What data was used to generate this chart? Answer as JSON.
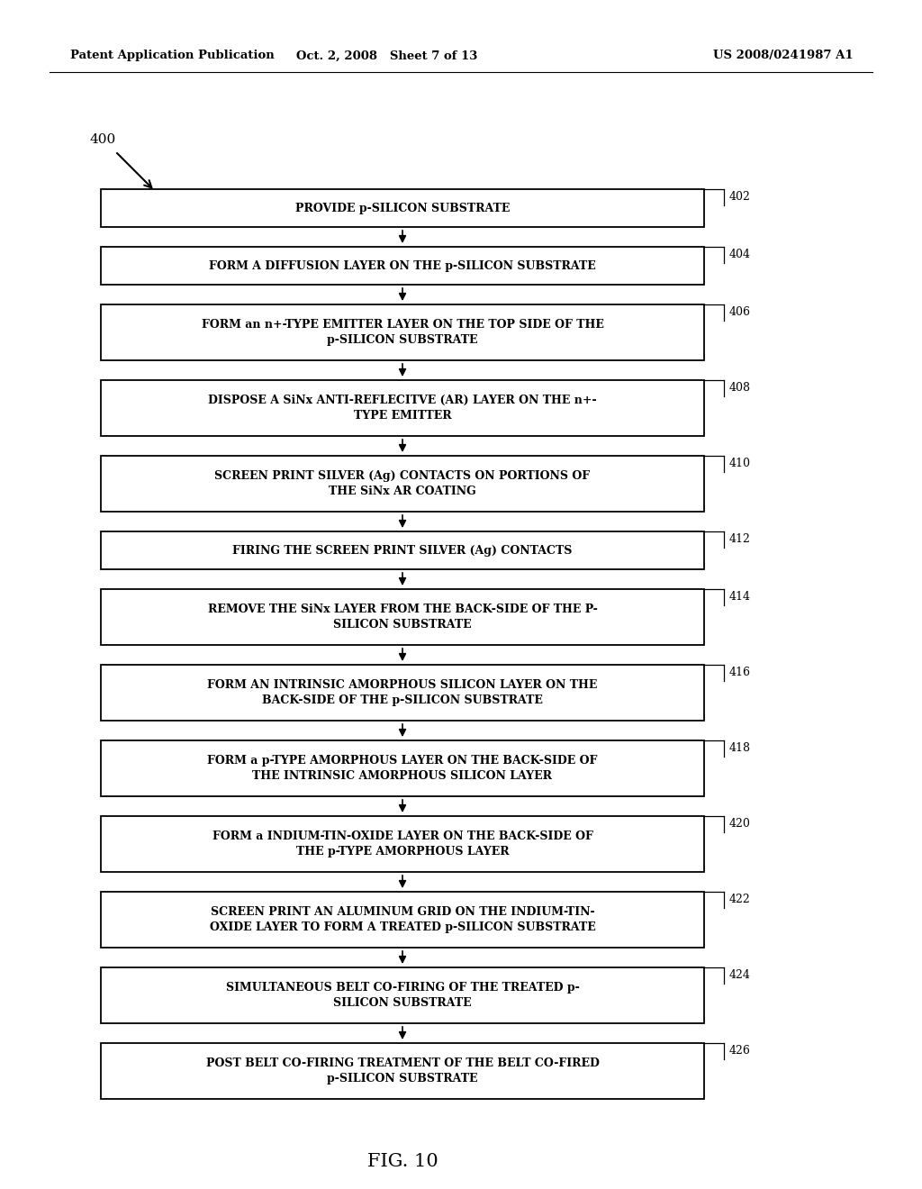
{
  "header_left": "Patent Application Publication",
  "header_mid": "Oct. 2, 2008   Sheet 7 of 13",
  "header_right": "US 2008/0241987 A1",
  "figure_label": "FIG. 10",
  "diagram_label": "400",
  "background_color": "#ffffff",
  "box_color": "#ffffff",
  "box_edge_color": "#000000",
  "text_color": "#000000",
  "steps": [
    {
      "id": "402",
      "text": "PROVIDE p-SILICON SUBSTRATE",
      "lines": 1
    },
    {
      "id": "404",
      "text": "FORM A DIFFUSION LAYER ON THE p-SILICON SUBSTRATE",
      "lines": 1
    },
    {
      "id": "406",
      "text": "FORM an n+-TYPE EMITTER LAYER ON THE TOP SIDE OF THE\np-SILICON SUBSTRATE",
      "lines": 2
    },
    {
      "id": "408",
      "text": "DISPOSE A SiNx ANTI-REFLECITVE (AR) LAYER ON THE n+-\nTYPE EMITTER",
      "lines": 2
    },
    {
      "id": "410",
      "text": "SCREEN PRINT SILVER (Ag) CONTACTS ON PORTIONS OF\nTHE SiNx AR COATING",
      "lines": 2
    },
    {
      "id": "412",
      "text": "FIRING THE SCREEN PRINT SILVER (Ag) CONTACTS",
      "lines": 1
    },
    {
      "id": "414",
      "text": "REMOVE THE SiNx LAYER FROM THE BACK-SIDE OF THE P-\nSILICON SUBSTRATE",
      "lines": 2
    },
    {
      "id": "416",
      "text": "FORM AN INTRINSIC AMORPHOUS SILICON LAYER ON THE\nBACK-SIDE OF THE p-SILICON SUBSTRATE",
      "lines": 2
    },
    {
      "id": "418",
      "text": "FORM a p-TYPE AMORPHOUS LAYER ON THE BACK-SIDE OF\nTHE INTRINSIC AMORPHOUS SILICON LAYER",
      "lines": 2
    },
    {
      "id": "420",
      "text": "FORM a INDIUM-TIN-OXIDE LAYER ON THE BACK-SIDE OF\nTHE p-TYPE AMORPHOUS LAYER",
      "lines": 2
    },
    {
      "id": "422",
      "text": "SCREEN PRINT AN ALUMINUM GRID ON THE INDIUM-TIN-\nOXIDE LAYER TO FORM A TREATED p-SILICON SUBSTRATE",
      "lines": 2
    },
    {
      "id": "424",
      "text": "SIMULTANEOUS BELT CO-FIRING OF THE TREATED p-\nSILICON SUBSTRATE",
      "lines": 2
    },
    {
      "id": "426",
      "text": "POST BELT CO-FIRING TREATMENT OF THE BELT CO-FIRED\np-SILICON SUBSTRATE",
      "lines": 2
    }
  ]
}
